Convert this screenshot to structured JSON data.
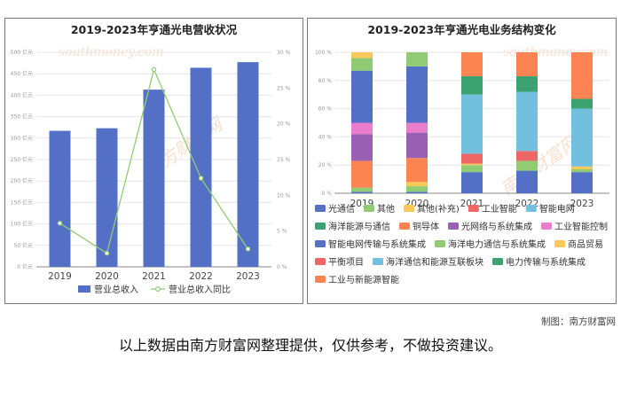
{
  "watermark": {
    "cn": "南方财富网",
    "en": "southmoney.com"
  },
  "credit": "制图：南方财富网",
  "note": "以上数据由南方财富网整理提供，仅供参考，不做投资建议。",
  "colors": {
    "bar": "#5470c6",
    "line": "#91cc75",
    "segments": {
      "光通信": "#5470c6",
      "其他": "#91cc75",
      "其他(补充)": "#fac858",
      "工业智能": "#ee6666",
      "智能电网": "#73c0de",
      "海洋能源与通信": "#3ba272",
      "铜导体": "#fc8452",
      "光网络与系统集成": "#9a60b4",
      "工业智能控制": "#ea7ccc",
      "智能电网传输与系统集成": "#5470c6",
      "海洋电力通信与系统集成": "#91cc75",
      "商品贸易": "#fac858",
      "平衡项目": "#ee6666",
      "海洋通信和能源互联板块": "#73c0de",
      "电力传输与系统集成": "#3ba272",
      "工业与新能源智能": "#fc8452"
    }
  },
  "chart_data": [
    {
      "type": "bar",
      "title": "2019-2023年亨通光电营收状况",
      "categories": [
        "2019",
        "2020",
        "2021",
        "2022",
        "2023"
      ],
      "series": [
        {
          "name": "营业总收入",
          "type": "bar",
          "axis": "left",
          "unit": "亿元",
          "values": [
            317,
            323,
            413,
            464,
            477
          ]
        },
        {
          "name": "营业总收入同比",
          "type": "line",
          "axis": "right",
          "unit": "%",
          "values": [
            6.1,
            1.9,
            27.6,
            12.4,
            2.5
          ]
        }
      ],
      "y_left": {
        "min": 0,
        "max": 500,
        "ticks": [
          "0 亿元",
          "50 亿元",
          "100 亿元",
          "150 亿元",
          "200 亿元",
          "250 亿元",
          "300 亿元",
          "350 亿元",
          "400 亿元",
          "450 亿元",
          "500 亿元"
        ]
      },
      "y_right": {
        "min": 0,
        "max": 30,
        "ticks": [
          "0 %",
          "5 %",
          "10 %",
          "15 %",
          "20 %",
          "25 %",
          "30 %"
        ]
      },
      "legend_position": "bottom",
      "grid": "horizontal"
    },
    {
      "type": "bar",
      "stacked": true,
      "title": "2019-2023年亨通光电业务结构变化",
      "categories": [
        "2019",
        "2020",
        "2021",
        "2022",
        "2023"
      ],
      "unit": "%",
      "y_ticks": [
        "0 %",
        "20 %",
        "40 %",
        "60 %",
        "80 %",
        "100 %"
      ],
      "legend_position": "bottom",
      "stacks": [
        [
          {
            "name": "智能电网传输与系统集成",
            "value": 1
          },
          {
            "name": "海洋电力通信与系统集成",
            "value": 3
          },
          {
            "name": "铜导体",
            "value": 19
          },
          {
            "name": "光网络与系统集成",
            "value": 19
          },
          {
            "name": "工业智能控制",
            "value": 8
          },
          {
            "name": "光通信",
            "value": 37
          },
          {
            "name": "其他",
            "value": 9
          },
          {
            "name": "其他(补充)",
            "value": 4
          }
        ],
        [
          {
            "name": "智能电网传输与系统集成",
            "value": 1
          },
          {
            "name": "海洋电力通信与系统集成",
            "value": 4
          },
          {
            "name": "商品贸易",
            "value": 3
          },
          {
            "name": "铜导体",
            "value": 17
          },
          {
            "name": "光网络与系统集成",
            "value": 18
          },
          {
            "name": "工业智能控制",
            "value": 7
          },
          {
            "name": "光通信",
            "value": 40
          },
          {
            "name": "其他",
            "value": 10
          }
        ],
        [
          {
            "name": "智能电网传输与系统集成",
            "value": 15
          },
          {
            "name": "海洋电力通信与系统集成",
            "value": 5
          },
          {
            "name": "商品贸易",
            "value": 1
          },
          {
            "name": "平衡项目",
            "value": 7
          },
          {
            "name": "海洋通信和能源互联板块",
            "value": 42
          },
          {
            "name": "电力传输与系统集成",
            "value": 13
          },
          {
            "name": "工业与新能源智能",
            "value": 17
          }
        ],
        [
          {
            "name": "智能电网传输与系统集成",
            "value": 16
          },
          {
            "name": "海洋电力通信与系统集成",
            "value": 7
          },
          {
            "name": "平衡项目",
            "value": 7
          },
          {
            "name": "海洋通信和能源互联板块",
            "value": 42
          },
          {
            "name": "电力传输与系统集成",
            "value": 11
          },
          {
            "name": "工业与新能源智能",
            "value": 17
          }
        ],
        [
          {
            "name": "智能电网传输与系统集成",
            "value": 15
          },
          {
            "name": "海洋电力通信与系统集成",
            "value": 2
          },
          {
            "name": "商品贸易",
            "value": 2
          },
          {
            "name": "海洋通信和能源互联板块",
            "value": 41
          },
          {
            "name": "电力传输与系统集成",
            "value": 7
          },
          {
            "name": "工业与新能源智能",
            "value": 33
          }
        ]
      ],
      "legend": [
        [
          "光通信",
          "其他",
          "其他(补充)",
          "工业智能",
          "智能电网"
        ],
        [
          "海洋能源与通信",
          "铜导体",
          "光网络与系统集成",
          "工业智能控制"
        ],
        [
          "智能电网传输与系统集成",
          "海洋电力通信与系统集成",
          "商品贸易"
        ],
        [
          "平衡项目",
          "海洋通信和能源互联板块",
          "电力传输与系统集成"
        ],
        [
          "工业与新能源智能"
        ]
      ]
    }
  ]
}
